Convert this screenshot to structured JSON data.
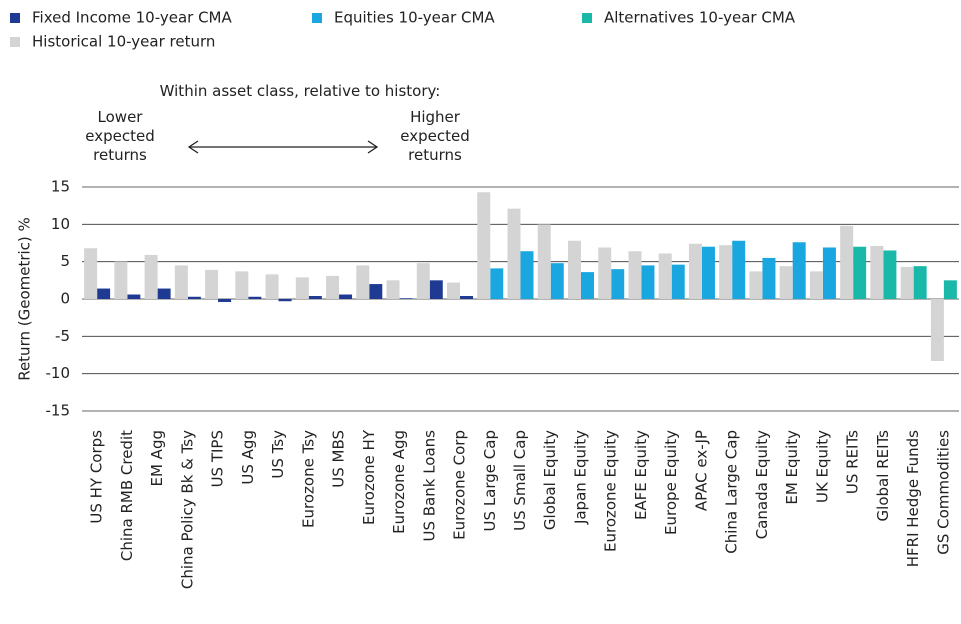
{
  "chart_data": {
    "type": "bar",
    "y_axis_label": "Return (Geometric) %",
    "annotations": {
      "header": "Within asset class, relative to history:",
      "lower": "Lower expected returns",
      "higher": "Higher expected returns"
    },
    "categories": [
      "US HY Corps",
      "China RMB Credit",
      "EM Agg",
      "China Policy Bk & Tsy",
      "US TIPS",
      "US Agg",
      "US Tsy",
      "Eurozone Tsy",
      "US MBS",
      "Eurozone HY",
      "Eurozone Agg",
      "US Bank Loans",
      "Eurozone Corp",
      "US Large Cap",
      "US Small Cap",
      "Global Equity",
      "Japan Equity",
      "Eurozone Equity",
      "EAFE Equity",
      "Europe Equity",
      "APAC ex-JP",
      "China Large Cap",
      "Canada Equity",
      "EM Equity",
      "UK Equity",
      "US REITs",
      "Global REITs",
      "HFRI Hedge Funds",
      "GS Commodities"
    ],
    "series": [
      {
        "name": "Fixed Income 10-year CMA",
        "color": "#1f3a93",
        "values": [
          1.4,
          0.6,
          1.4,
          0.3,
          -0.4,
          0.3,
          -0.3,
          0.4,
          0.6,
          2.0,
          0.1,
          2.5,
          0.4,
          null,
          null,
          null,
          null,
          null,
          null,
          null,
          null,
          null,
          null,
          null,
          null,
          null,
          null,
          null,
          null
        ]
      },
      {
        "name": "Equities 10-year CMA",
        "color": "#1aa7e0",
        "values": [
          null,
          null,
          null,
          null,
          null,
          null,
          null,
          null,
          null,
          null,
          null,
          null,
          null,
          4.1,
          6.4,
          4.8,
          3.6,
          4.0,
          4.5,
          4.6,
          7.0,
          7.8,
          5.5,
          7.6,
          6.9,
          null,
          null,
          null,
          null
        ]
      },
      {
        "name": "Alternatives 10-year CMA",
        "color": "#1ab8a8",
        "values": [
          null,
          null,
          null,
          null,
          null,
          null,
          null,
          null,
          null,
          null,
          null,
          null,
          null,
          null,
          null,
          null,
          null,
          null,
          null,
          null,
          null,
          null,
          null,
          null,
          null,
          7.0,
          6.5,
          4.4,
          2.5
        ]
      },
      {
        "name": "Historical 10-year return",
        "color": "#d4d4d4",
        "values": [
          6.8,
          5.0,
          5.9,
          4.5,
          3.9,
          3.7,
          3.3,
          2.9,
          3.1,
          4.5,
          2.5,
          4.8,
          2.2,
          14.3,
          12.1,
          10.0,
          7.8,
          6.9,
          6.4,
          6.1,
          7.4,
          7.2,
          3.7,
          4.4,
          3.7,
          9.8,
          7.1,
          4.3,
          -8.3
        ]
      }
    ],
    "ylim": [
      -15,
      15
    ],
    "yticks": [
      -15,
      -10,
      -5,
      0,
      5,
      10,
      15
    ],
    "grid": true
  }
}
